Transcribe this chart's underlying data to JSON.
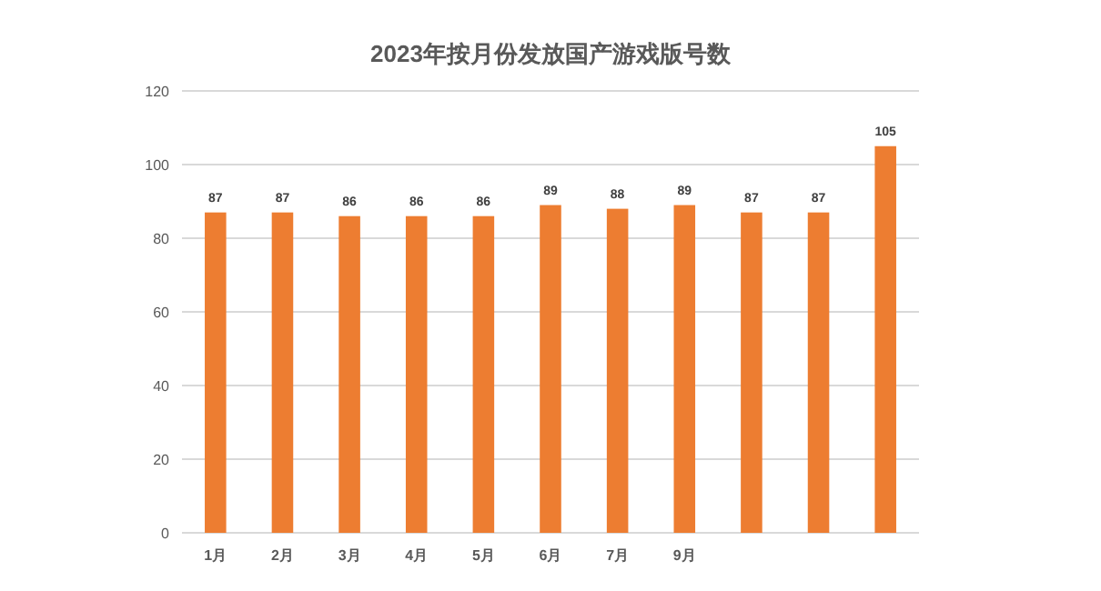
{
  "chart_data": {
    "type": "bar",
    "title": "2023年按月份发放国产游戏版号数",
    "categories": [
      "1月",
      "2月",
      "3月",
      "4月",
      "5月",
      "6月",
      "7月",
      "9月",
      null,
      null,
      null
    ],
    "values": [
      87,
      87,
      86,
      86,
      86,
      89,
      88,
      89,
      87,
      87,
      105
    ],
    "color": "#ed7d31",
    "ylim": [
      0,
      120
    ],
    "yticks": [
      0,
      20,
      40,
      60,
      80,
      100,
      120
    ],
    "grid": "y",
    "data_labels": true
  }
}
